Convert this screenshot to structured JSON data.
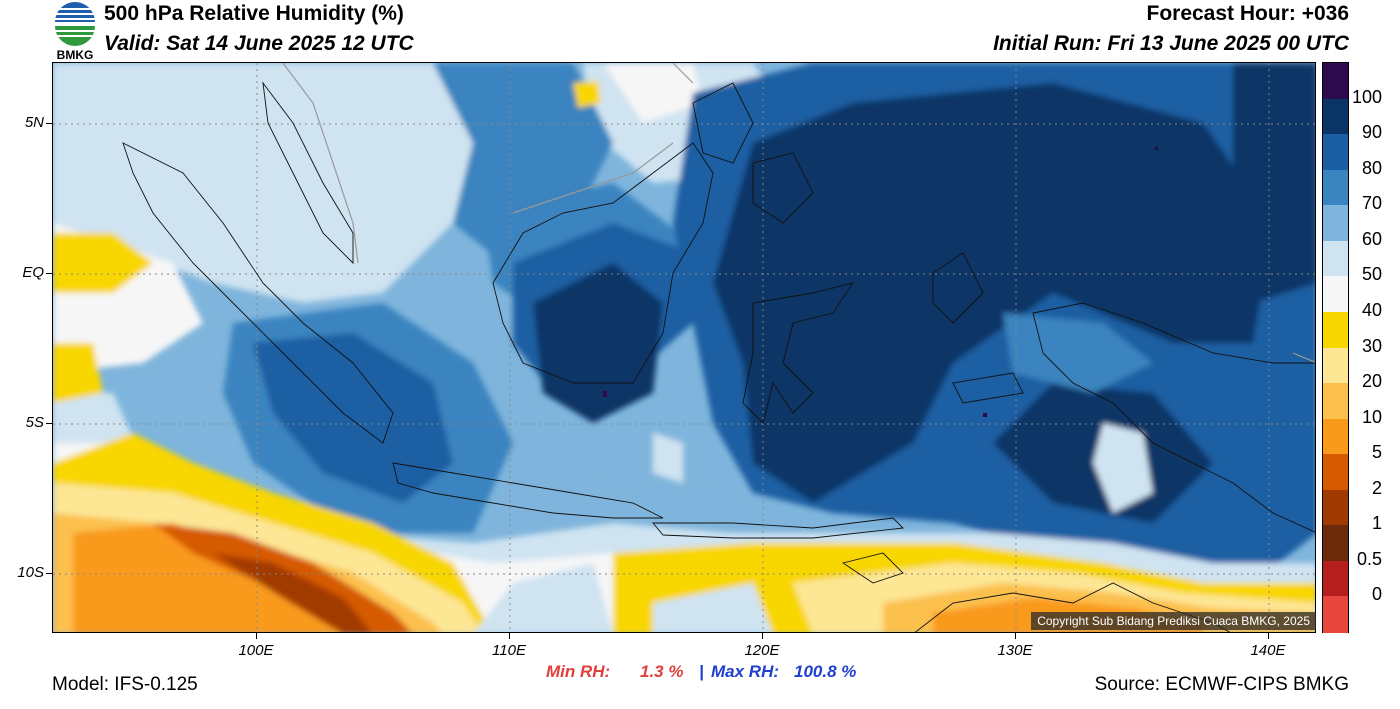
{
  "header": {
    "title": "500 hPa Relative Humidity (%)",
    "valid": "Valid: Sat 14 June 2025 12 UTC",
    "forecast_hour": "Forecast Hour: +036",
    "initial_run": "Initial Run: Fri 13 June 2025 00 UTC"
  },
  "logo": {
    "text": "BMKG",
    "icon": "bmkg-logo-icon"
  },
  "axes": {
    "lat_labels": [
      "5N",
      "EQ",
      "5S",
      "10S"
    ],
    "lon_labels": [
      "100E",
      "110E",
      "120E",
      "130E",
      "140E"
    ]
  },
  "colorbar": {
    "labels": [
      "100",
      "90",
      "80",
      "70",
      "60",
      "50",
      "40",
      "30",
      "20",
      "10",
      "5",
      "2",
      "1",
      "0.5",
      "0"
    ],
    "colors": [
      "#2d0a4e",
      "#0b3466",
      "#1c5ea3",
      "#3a84c0",
      "#7fb5dc",
      "#cfe3f1",
      "#f6f6f6",
      "#f8d600",
      "#fde694",
      "#fcc04d",
      "#f99a1b",
      "#d65a00",
      "#a13a00",
      "#6b2a0a",
      "#b41e1e",
      "#e8463c"
    ]
  },
  "copyright": "Copyright Sub Bidang Prediksi Cuaca BMKG, 2025",
  "stats": {
    "min_label": "Min RH:",
    "min_value": "1.3 %",
    "separator": "|",
    "max_label": "Max RH:",
    "max_value": "100.8 %"
  },
  "footer": {
    "model": "Model: IFS-0.125",
    "source": "Source: ECMWF-CIPS BMKG"
  }
}
